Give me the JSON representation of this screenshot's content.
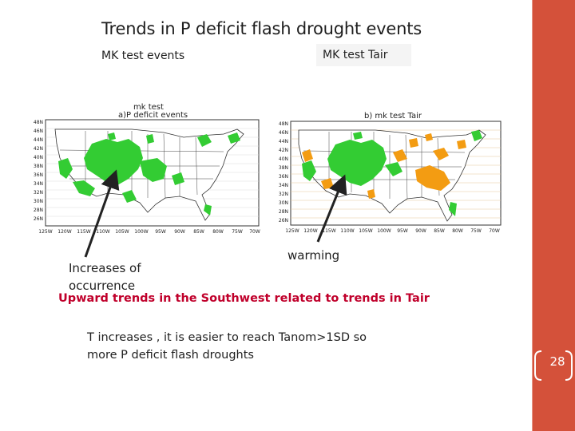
{
  "slide": {
    "title": "Trends in P deficit flash drought events",
    "subtitle_left": "MK test events",
    "subtitle_right": "MK test Tair",
    "note_left": [
      "Increases of",
      "occurrence"
    ],
    "note_warming": "warming",
    "highlight": "Upward trends in the Southwest related to trends in Tair",
    "body": [
      "T increases , it is easier to reach Tanom>1SD so",
      "more P deficit flash droughts"
    ],
    "page_number": "28"
  },
  "map_a": {
    "title_line1": "mk  test",
    "title_line2": "a)P  deficit  events",
    "lat_labels": [
      "48N",
      "46N",
      "44N",
      "42N",
      "40N",
      "38N",
      "36N",
      "34N",
      "32N",
      "30N",
      "28N",
      "26N"
    ],
    "lon_labels": [
      "125W",
      "120W",
      "115W",
      "110W",
      "105W",
      "100W",
      "95W",
      "90W",
      "85W",
      "80W",
      "75W",
      "70W"
    ]
  },
  "map_b": {
    "title": "b)  mk  test  Tair",
    "lat_labels": [
      "48N",
      "46N",
      "44N",
      "42N",
      "40N",
      "38N",
      "36N",
      "34N",
      "32N",
      "30N",
      "28N",
      "26N"
    ],
    "lon_labels": [
      "125W",
      "120W",
      "115W",
      "110W",
      "105W",
      "100W",
      "95W",
      "90W",
      "85W",
      "80W",
      "75W",
      "70W"
    ]
  },
  "colors": {
    "sidebar": "#d4513a",
    "increase_green": "#33cc33",
    "warming_orange": "#f39c12",
    "highlight_red": "#c0002b"
  }
}
